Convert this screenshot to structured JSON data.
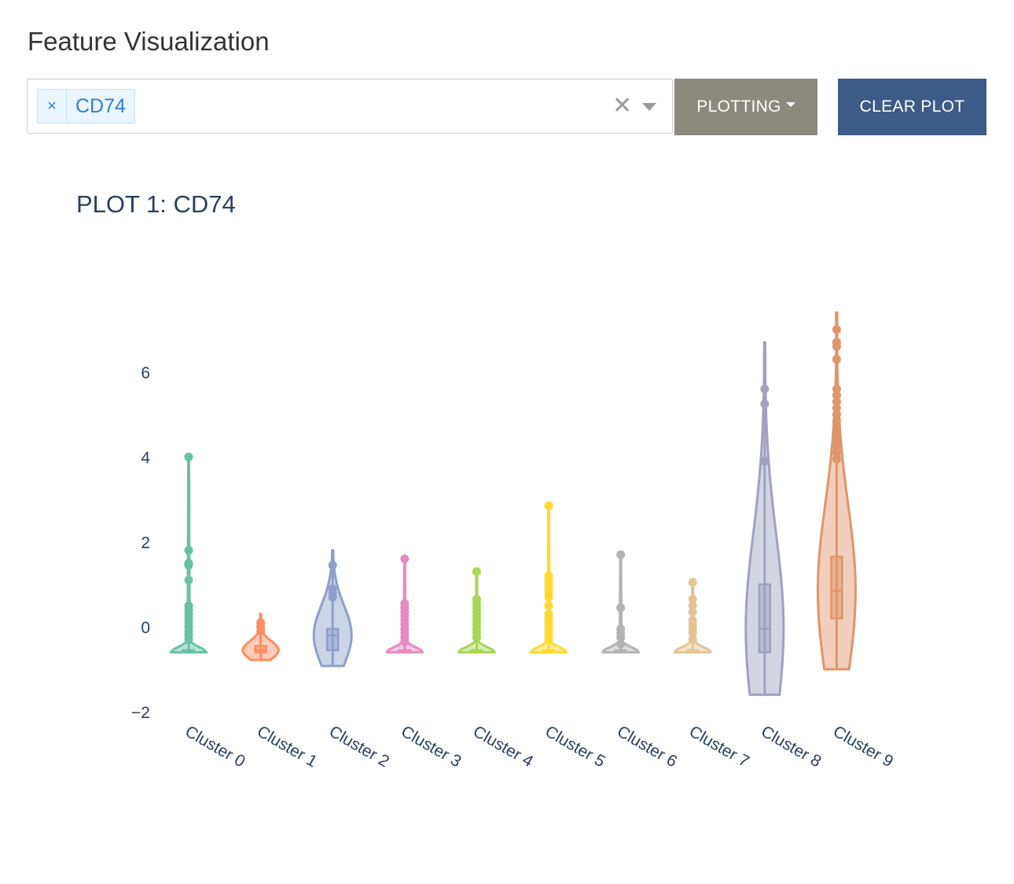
{
  "header": {
    "title": "Feature Visualization"
  },
  "selector": {
    "selected_tags": [
      "CD74"
    ],
    "remove_glyph": "×",
    "clear_glyph": "✕"
  },
  "toolbar": {
    "plotting_label": "PLOTTING",
    "clear_label": "CLEAR PLOT"
  },
  "colors": {
    "plotting_button": "#8c8a7e",
    "clear_button": "#3c5b86",
    "tag_text": "#2f7fd8"
  },
  "chart_data": {
    "type": "violin",
    "title": "PLOT 1: CD74",
    "xlabel": "",
    "ylabel": "",
    "ylim": [
      -2,
      7.5
    ],
    "yticks": [
      -2,
      0,
      2,
      4,
      6
    ],
    "ytick_labels": [
      "−2",
      "0",
      "2",
      "4",
      "6"
    ],
    "grid": false,
    "legend": "none",
    "categories": [
      "Cluster 0",
      "Cluster 1",
      "Cluster 2",
      "Cluster 3",
      "Cluster 4",
      "Cluster 5",
      "Cluster 6",
      "Cluster 7",
      "Cluster 8",
      "Cluster 9"
    ],
    "series": [
      {
        "color": "#66c2a5",
        "min": -0.6,
        "max": 4.0,
        "q1": -0.6,
        "median": -0.6,
        "q3": -0.55,
        "outliers": [
          4.0,
          1.8,
          1.5,
          1.45,
          1.1,
          0.5,
          0.4,
          0.3,
          0.2,
          0.1,
          0.0,
          -0.1,
          -0.2,
          -0.3
        ]
      },
      {
        "color": "#fc8d62",
        "min": -0.78,
        "max": 0.3,
        "q1": -0.6,
        "median": -0.55,
        "q3": -0.45,
        "outliers": [
          0.1,
          0.0,
          -0.1
        ]
      },
      {
        "color": "#8da0cb",
        "min": -0.92,
        "max": 1.8,
        "q1": -0.55,
        "median": -0.2,
        "q3": -0.05,
        "outliers": [
          1.45,
          0.9,
          0.8,
          0.7
        ]
      },
      {
        "color": "#e78ac3",
        "min": -0.6,
        "max": 1.6,
        "q1": -0.6,
        "median": -0.6,
        "q3": -0.55,
        "outliers": [
          1.6,
          0.55,
          0.45,
          0.35,
          0.25,
          0.15,
          0.05,
          -0.05,
          -0.15,
          -0.25,
          -0.35
        ]
      },
      {
        "color": "#a6d854",
        "min": -0.6,
        "max": 1.3,
        "q1": -0.6,
        "median": -0.6,
        "q3": -0.55,
        "outliers": [
          1.3,
          0.65,
          0.55,
          0.45,
          0.35,
          0.25,
          0.15,
          0.05,
          -0.05,
          -0.15,
          -0.25
        ]
      },
      {
        "color": "#ffd92f",
        "min": -0.6,
        "max": 2.85,
        "q1": -0.6,
        "median": -0.6,
        "q3": -0.55,
        "outliers": [
          2.85,
          1.2,
          1.1,
          1.0,
          0.9,
          0.8,
          0.7,
          0.5,
          0.3,
          0.2,
          0.1,
          0.0,
          -0.1,
          -0.2,
          -0.3
        ]
      },
      {
        "color": "#b3b3b3",
        "min": -0.6,
        "max": 1.7,
        "q1": -0.6,
        "median": -0.6,
        "q3": -0.55,
        "outliers": [
          1.7,
          0.45,
          -0.05,
          -0.15,
          -0.25,
          -0.4
        ]
      },
      {
        "color": "#e5c494",
        "min": -0.6,
        "max": 1.05,
        "q1": -0.6,
        "median": -0.6,
        "q3": -0.55,
        "outliers": [
          1.05,
          0.65,
          0.5,
          0.35,
          0.15,
          0.05,
          -0.05,
          -0.15,
          -0.3
        ]
      },
      {
        "color": "#a0a1c0",
        "min": -1.6,
        "max": 6.7,
        "q1": -0.6,
        "median": -0.05,
        "q3": 1.0,
        "outliers": [
          5.6,
          5.25,
          3.9
        ]
      },
      {
        "color": "#e0956a",
        "min": -1.0,
        "max": 7.4,
        "q1": 0.2,
        "median": 0.85,
        "q3": 1.65,
        "outliers": [
          7.0,
          6.7,
          6.6,
          6.3,
          5.6,
          5.45,
          5.3,
          5.15,
          5.0,
          4.85,
          4.7,
          4.55,
          4.4,
          4.25,
          4.1,
          3.95
        ]
      }
    ]
  }
}
